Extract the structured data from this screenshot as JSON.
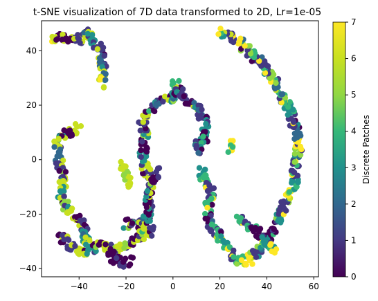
{
  "chart_data": {
    "type": "scatter",
    "title": "t-SNE visualization of 7D data transformed to 2D, Lr=1e-05",
    "xlabel": "",
    "ylabel": "",
    "xlim": [
      -56,
      62
    ],
    "ylim": [
      -43,
      51
    ],
    "x_ticks": [
      -40,
      -20,
      0,
      20,
      40,
      60
    ],
    "y_ticks": [
      -40,
      -20,
      0,
      20,
      40
    ],
    "grid": false,
    "colormap": "viridis",
    "colorbar": {
      "label": "Discrete Patches",
      "min": 0,
      "max": 7,
      "ticks": [
        0,
        1,
        2,
        3,
        4,
        5,
        6,
        7
      ]
    },
    "clusters": [
      {
        "path": [
          [
            -52,
            44
          ],
          [
            -46,
            45
          ],
          [
            -40,
            44
          ],
          [
            -36,
            47
          ],
          [
            -34,
            43
          ],
          [
            -31,
            40
          ],
          [
            -30,
            36
          ],
          [
            -30,
            31
          ],
          [
            -29,
            27
          ]
        ],
        "values": [
          6,
          0,
          1,
          6,
          3,
          1,
          2,
          6,
          7
        ]
      },
      {
        "path": [
          [
            -40,
            12
          ],
          [
            -45,
            10
          ],
          [
            -49,
            7
          ],
          [
            -49,
            2
          ],
          [
            -48,
            -2
          ],
          [
            -46,
            -8
          ],
          [
            -48,
            -12
          ],
          [
            -46,
            -17
          ],
          [
            -43,
            -20
          ],
          [
            -40,
            -22
          ],
          [
            -38,
            -24
          ],
          [
            -37,
            -28
          ],
          [
            -37,
            -30
          ]
        ],
        "values": [
          6,
          0,
          6,
          2,
          1,
          6,
          3,
          5,
          6,
          0,
          1,
          3,
          6
        ]
      },
      {
        "path": [
          [
            -48,
            -28
          ],
          [
            -44,
            -31
          ],
          [
            -40,
            -34
          ],
          [
            -35,
            -33
          ],
          [
            -31,
            -31
          ],
          [
            -28,
            -32
          ],
          [
            -25,
            -33
          ],
          [
            -22,
            -32
          ],
          [
            -19,
            -31
          ],
          [
            -16,
            -30
          ],
          [
            -12,
            -27
          ],
          [
            -8,
            -26
          ]
        ],
        "values": [
          0,
          1,
          6,
          3,
          0,
          6,
          1,
          6,
          5,
          0,
          6,
          1
        ]
      },
      {
        "path": [
          [
            -28,
            -34
          ],
          [
            -25,
            -36
          ],
          [
            -22,
            -38
          ],
          [
            -18,
            -37
          ]
        ],
        "values": [
          0,
          0,
          1,
          0
        ]
      },
      {
        "path": [
          [
            -20,
            -24
          ],
          [
            -16,
            -22
          ],
          [
            -14,
            -25
          ],
          [
            -10,
            -20
          ],
          [
            -11,
            -14
          ],
          [
            -9,
            -8
          ],
          [
            -12,
            -3
          ],
          [
            -13,
            1
          ],
          [
            -12,
            5
          ],
          [
            -12,
            9
          ],
          [
            -13,
            13
          ],
          [
            -12,
            16
          ],
          [
            -9,
            19
          ],
          [
            -6,
            21
          ],
          [
            -3,
            22
          ],
          [
            0,
            23
          ],
          [
            2,
            25
          ],
          [
            1,
            28
          ],
          [
            4,
            23
          ],
          [
            8,
            21
          ],
          [
            11,
            18
          ],
          [
            13,
            16
          ],
          [
            14,
            12
          ],
          [
            14,
            8
          ],
          [
            11,
            6
          ],
          [
            11,
            2
          ]
        ],
        "values": [
          0,
          1,
          6,
          3,
          0,
          1,
          6,
          3,
          0,
          5,
          1,
          6,
          0,
          2,
          1,
          3,
          0,
          4,
          1,
          0,
          2,
          1,
          3,
          0,
          4,
          1
        ]
      },
      {
        "path": [
          [
            -18,
            -10
          ],
          [
            -20,
            -5
          ],
          [
            -22,
            -2
          ]
        ],
        "values": [
          6,
          5,
          6
        ]
      },
      {
        "path": [
          [
            -9,
            -8
          ],
          [
            -7,
            -4
          ]
        ],
        "values": [
          0,
          1
        ]
      },
      {
        "path": [
          [
            12,
            -4
          ],
          [
            14,
            -8
          ],
          [
            16,
            -12
          ],
          [
            15,
            -17
          ],
          [
            15,
            -22
          ],
          [
            17,
            -26
          ],
          [
            21,
            -29
          ],
          [
            23,
            -32
          ],
          [
            25,
            -35
          ],
          [
            28,
            -37
          ],
          [
            32,
            -37
          ],
          [
            36,
            -34
          ],
          [
            39,
            -30
          ],
          [
            42,
            -26
          ],
          [
            45,
            -22
          ],
          [
            47,
            -18
          ],
          [
            50,
            -12
          ],
          [
            52,
            -8
          ],
          [
            52,
            -3
          ],
          [
            53,
            2
          ],
          [
            54,
            6
          ],
          [
            53,
            10
          ],
          [
            51,
            14
          ],
          [
            50,
            18
          ],
          [
            47,
            22
          ],
          [
            45,
            26
          ],
          [
            42,
            30
          ],
          [
            40,
            33
          ],
          [
            37,
            36
          ],
          [
            34,
            38
          ],
          [
            31,
            41
          ],
          [
            28,
            43
          ],
          [
            25,
            45
          ],
          [
            22,
            46
          ],
          [
            19,
            47
          ]
        ],
        "values": [
          3,
          4,
          1,
          4,
          0,
          1,
          4,
          3,
          1,
          4,
          7,
          1,
          4,
          0,
          3,
          1,
          7,
          3,
          1,
          5,
          7,
          2,
          1,
          3,
          4,
          2,
          5,
          7,
          1,
          4,
          5,
          7,
          1,
          6,
          7
        ]
      },
      {
        "path": [
          [
            28,
            -22
          ],
          [
            32,
            -24
          ],
          [
            36,
            -27
          ],
          [
            40,
            -31
          ],
          [
            44,
            -33
          ]
        ],
        "values": [
          4,
          1,
          0,
          3,
          7
        ]
      },
      {
        "path": [
          [
            26,
            6
          ],
          [
            24,
            3
          ]
        ],
        "values": [
          7,
          4
        ]
      }
    ]
  }
}
